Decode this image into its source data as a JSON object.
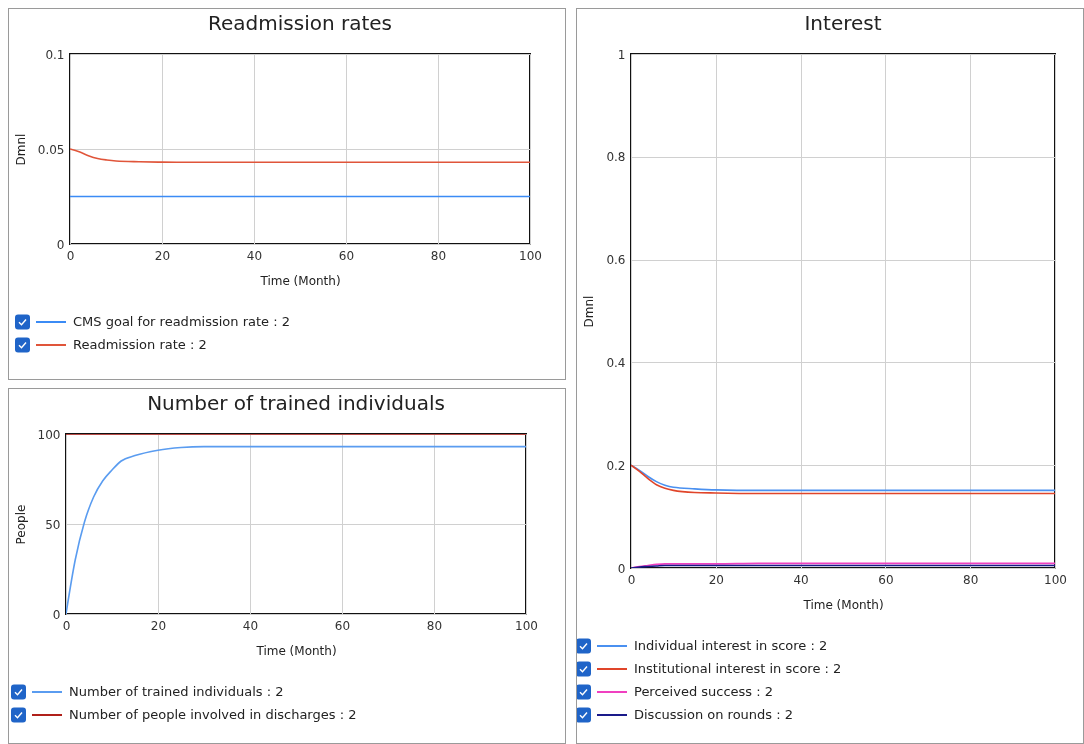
{
  "chart_data": [
    {
      "type": "line",
      "title": "Readmission rates",
      "xlabel": "Time (Month)",
      "ylabel": "Dmnl",
      "x": [
        0,
        2,
        4,
        6,
        8,
        10,
        15,
        20,
        30,
        100
      ],
      "xlim": [
        0,
        100
      ],
      "xticks": [
        0,
        20,
        40,
        60,
        80,
        100
      ],
      "ylim": [
        0,
        0.1
      ],
      "yticks": [
        0,
        0.05,
        0.1
      ],
      "grid": true,
      "legend": "bottom",
      "series": [
        {
          "name": "CMS goal for readmission rate : 2",
          "color": "#3b8bf5",
          "values": [
            0.025,
            0.025,
            0.025,
            0.025,
            0.025,
            0.025,
            0.025,
            0.025,
            0.025,
            0.025
          ]
        },
        {
          "name": "Readmission rate : 2",
          "color": "#e0553a",
          "values": [
            0.05,
            0.0485,
            0.0465,
            0.045,
            0.0442,
            0.0437,
            0.0433,
            0.0431,
            0.043,
            0.043
          ]
        }
      ]
    },
    {
      "type": "line",
      "title": "Number of trained individuals",
      "xlabel": "Time (Month)",
      "ylabel": "People",
      "x": [
        0,
        2,
        4,
        6,
        8,
        10,
        12,
        15,
        20,
        25,
        30,
        40,
        100
      ],
      "xlim": [
        0,
        100
      ],
      "xticks": [
        0,
        20,
        40,
        60,
        80,
        100
      ],
      "ylim": [
        0,
        100
      ],
      "yticks": [
        0,
        50,
        100
      ],
      "grid": true,
      "legend": "bottom",
      "series": [
        {
          "name": "Number of trained individuals : 2",
          "color": "#5a9cf0",
          "values": [
            0,
            30,
            51,
            65,
            74,
            80,
            85,
            88,
            91,
            92.5,
            93,
            93,
            93
          ]
        },
        {
          "name": "Number of people involved in discharges : 2",
          "color": "#b0201a",
          "values": [
            100,
            100,
            100,
            100,
            100,
            100,
            100,
            100,
            100,
            100,
            100,
            100,
            100
          ]
        }
      ]
    },
    {
      "type": "line",
      "title": "Interest",
      "xlabel": "Time (Month)",
      "ylabel": "Dmnl",
      "x": [
        0,
        2,
        4,
        6,
        8,
        10,
        15,
        20,
        30,
        100
      ],
      "xlim": [
        0,
        100
      ],
      "xticks": [
        0,
        20,
        40,
        60,
        80,
        100
      ],
      "ylim": [
        0,
        1
      ],
      "yticks": [
        0,
        0.2,
        0.4,
        0.6,
        0.8,
        1
      ],
      "grid": true,
      "legend": "bottom",
      "series": [
        {
          "name": "Individual interest in score : 2",
          "color": "#4a90f0",
          "values": [
            0.2,
            0.19,
            0.178,
            0.168,
            0.161,
            0.157,
            0.154,
            0.152,
            0.151,
            0.151
          ]
        },
        {
          "name": "Institutional interest in score : 2",
          "color": "#e0452a",
          "values": [
            0.2,
            0.188,
            0.174,
            0.162,
            0.155,
            0.151,
            0.147,
            0.146,
            0.145,
            0.145
          ]
        },
        {
          "name": "Perceived success : 2",
          "color": "#f040c0",
          "values": [
            0,
            0.003,
            0.005,
            0.007,
            0.008,
            0.008,
            0.008,
            0.008,
            0.009,
            0.009
          ]
        },
        {
          "name": "Discussion on rounds : 2",
          "color": "#1a1a8a",
          "values": [
            0,
            0.002,
            0.003,
            0.004,
            0.005,
            0.005,
            0.005,
            0.005,
            0.005,
            0.005
          ]
        }
      ]
    }
  ]
}
